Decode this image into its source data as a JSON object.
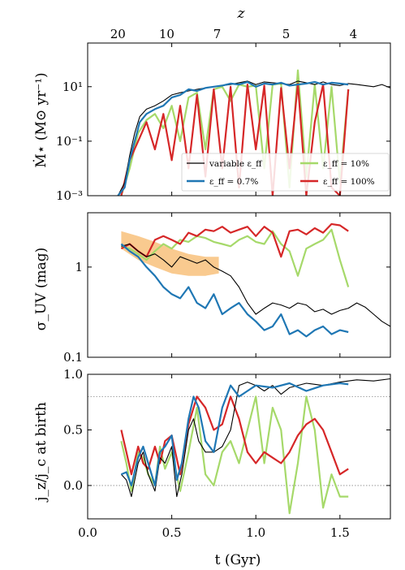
{
  "chart_data": [
    {
      "panel": "sfr",
      "type": "line",
      "xlabel": "t (Gyr)",
      "ylabel": "Ṁ⋆ (M⊙ yr⁻¹)",
      "yscale": "log",
      "xlim": [
        0,
        1.8
      ],
      "ylim": [
        0.001,
        400
      ],
      "ytick_labels": [
        "10⁻³",
        "10⁻¹",
        "10¹"
      ],
      "top_axis": {
        "label": "z",
        "ticks": [
          {
            "label": "20",
            "t": 0.18
          },
          {
            "label": "10",
            "t": 0.47
          },
          {
            "label": "7",
            "t": 0.77
          },
          {
            "label": "5",
            "t": 1.18
          },
          {
            "label": "4",
            "t": 1.58
          }
        ]
      },
      "legend": {
        "position": "lower-right",
        "columns": 2
      },
      "series": [
        {
          "name": "variable ε_ff",
          "color": "#000000",
          "x": [
            0.18,
            0.22,
            0.25,
            0.28,
            0.31,
            0.35,
            0.4,
            0.45,
            0.5,
            0.55,
            0.6,
            0.65,
            0.7,
            0.75,
            0.8,
            0.85,
            0.9,
            0.95,
            1.0,
            1.05,
            1.1,
            1.15,
            1.2,
            1.25,
            1.3,
            1.35,
            1.4,
            1.45,
            1.5,
            1.55,
            1.6,
            1.65,
            1.7,
            1.75,
            1.8
          ],
          "y": [
            0.001,
            0.003,
            0.03,
            0.2,
            0.8,
            1.5,
            2,
            3,
            5,
            6,
            7,
            8,
            9,
            10,
            11,
            12,
            14,
            16,
            12,
            15,
            14,
            13,
            12,
            16,
            14,
            12,
            15,
            12,
            11,
            13,
            12,
            11,
            10,
            12,
            9
          ]
        },
        {
          "name": "ε_ff = 0.7%",
          "color": "#1f77b4",
          "x": [
            0.18,
            0.22,
            0.25,
            0.28,
            0.31,
            0.35,
            0.4,
            0.45,
            0.5,
            0.55,
            0.6,
            0.65,
            0.7,
            0.75,
            0.8,
            0.85,
            0.9,
            0.95,
            1.0,
            1.05,
            1.1,
            1.15,
            1.2,
            1.25,
            1.3,
            1.35,
            1.4,
            1.45,
            1.5,
            1.55
          ],
          "y": [
            0.001,
            0.002,
            0.02,
            0.1,
            0.5,
            1,
            1.5,
            2,
            4,
            5,
            8,
            7,
            9,
            10,
            11,
            13,
            12,
            15,
            10,
            13,
            12,
            14,
            11,
            12,
            13,
            15,
            12,
            14,
            13,
            12
          ]
        },
        {
          "name": "ε_ff = 10%",
          "color": "#a6d96a",
          "x": [
            0.2,
            0.25,
            0.3,
            0.35,
            0.4,
            0.45,
            0.5,
            0.55,
            0.6,
            0.65,
            0.7,
            0.75,
            0.8,
            0.85,
            0.9,
            0.95,
            1.0,
            1.05,
            1.1,
            1.15,
            1.2,
            1.25,
            1.3,
            1.35,
            1.4,
            1.45,
            1.5,
            1.55
          ],
          "y": [
            0.001,
            0.01,
            0.2,
            0.6,
            1,
            0.3,
            2,
            0.1,
            4,
            6,
            0.05,
            8,
            10,
            3,
            12,
            10,
            11,
            0.01,
            12,
            13,
            0.002,
            40,
            0.005,
            12,
            0.01,
            10,
            0.003,
            8
          ]
        },
        {
          "name": "ε_ff = 100%",
          "color": "#d62728",
          "x": [
            0.2,
            0.25,
            0.3,
            0.35,
            0.4,
            0.45,
            0.5,
            0.55,
            0.6,
            0.65,
            0.7,
            0.75,
            0.8,
            0.85,
            0.9,
            0.95,
            1.0,
            1.05,
            1.1,
            1.15,
            1.2,
            1.25,
            1.3,
            1.35,
            1.4,
            1.45,
            1.5,
            1.55
          ],
          "y": [
            0.001,
            0.02,
            0.1,
            0.5,
            0.05,
            1,
            0.02,
            2,
            0.01,
            5,
            0.005,
            8,
            0.01,
            10,
            0.002,
            12,
            0.05,
            11,
            0.001,
            9,
            0.01,
            13,
            0.001,
            0.5,
            12,
            0.002,
            0.001,
            8
          ]
        }
      ]
    },
    {
      "panel": "sigma_uv",
      "type": "line",
      "ylabel": "σ_UV (mag)",
      "yscale": "log",
      "xlim": [
        0,
        1.8
      ],
      "ylim": [
        0.1,
        4
      ],
      "ytick_labels": [
        "0.1",
        "1"
      ],
      "band": {
        "color": "#f7b86a",
        "x": [
          0.2,
          0.3,
          0.4,
          0.5,
          0.6,
          0.7,
          0.78
        ],
        "low": [
          1.6,
          1.2,
          1.0,
          0.85,
          0.8,
          0.8,
          0.85
        ],
        "high": [
          2.5,
          2.2,
          1.9,
          1.6,
          1.4,
          1.3,
          1.3
        ]
      },
      "series": [
        {
          "name": "variable ε_ff",
          "color": "#000000",
          "x": [
            0.2,
            0.25,
            0.3,
            0.35,
            0.4,
            0.45,
            0.5,
            0.55,
            0.6,
            0.65,
            0.7,
            0.75,
            0.8,
            0.85,
            0.9,
            0.95,
            1.0,
            1.05,
            1.1,
            1.15,
            1.2,
            1.25,
            1.3,
            1.35,
            1.4,
            1.45,
            1.5,
            1.55,
            1.6,
            1.65,
            1.7,
            1.75,
            1.8
          ],
          "y": [
            1.7,
            1.8,
            1.5,
            1.3,
            1.4,
            1.2,
            1.0,
            1.3,
            1.2,
            1.1,
            1.2,
            1.0,
            0.9,
            0.8,
            0.6,
            0.4,
            0.3,
            0.35,
            0.4,
            0.38,
            0.35,
            0.4,
            0.38,
            0.32,
            0.34,
            0.3,
            0.33,
            0.35,
            0.4,
            0.36,
            0.3,
            0.25,
            0.22
          ]
        },
        {
          "name": "ε_ff = 0.7%",
          "color": "#1f77b4",
          "x": [
            0.2,
            0.25,
            0.3,
            0.35,
            0.4,
            0.45,
            0.5,
            0.55,
            0.6,
            0.65,
            0.7,
            0.75,
            0.8,
            0.85,
            0.9,
            0.95,
            1.0,
            1.05,
            1.1,
            1.15,
            1.2,
            1.25,
            1.3,
            1.35,
            1.4,
            1.45,
            1.5,
            1.55
          ],
          "y": [
            1.8,
            1.5,
            1.3,
            1.0,
            0.8,
            0.6,
            0.5,
            0.45,
            0.6,
            0.4,
            0.35,
            0.5,
            0.3,
            0.35,
            0.4,
            0.3,
            0.25,
            0.2,
            0.22,
            0.3,
            0.18,
            0.2,
            0.17,
            0.2,
            0.22,
            0.18,
            0.2,
            0.19
          ]
        },
        {
          "name": "ε_ff = 10%",
          "color": "#a6d96a",
          "x": [
            0.2,
            0.25,
            0.3,
            0.35,
            0.4,
            0.45,
            0.5,
            0.55,
            0.6,
            0.65,
            0.7,
            0.75,
            0.8,
            0.85,
            0.9,
            0.95,
            1.0,
            1.05,
            1.1,
            1.15,
            1.2,
            1.25,
            1.3,
            1.35,
            1.4,
            1.45,
            1.5,
            1.55
          ],
          "y": [
            1.7,
            1.6,
            1.4,
            1.2,
            1.5,
            1.8,
            1.6,
            2.0,
            1.9,
            2.2,
            2.1,
            1.9,
            1.8,
            1.7,
            2.0,
            2.2,
            1.9,
            1.8,
            2.5,
            1.8,
            1.5,
            0.8,
            1.6,
            1.8,
            2.0,
            2.6,
            1.2,
            0.6
          ]
        },
        {
          "name": "ε_ff = 100%",
          "color": "#d62728",
          "x": [
            0.2,
            0.25,
            0.3,
            0.35,
            0.4,
            0.45,
            0.5,
            0.55,
            0.6,
            0.65,
            0.7,
            0.75,
            0.8,
            0.85,
            0.9,
            0.95,
            1.0,
            1.05,
            1.1,
            1.15,
            1.2,
            1.25,
            1.3,
            1.35,
            1.4,
            1.45,
            1.5,
            1.55
          ],
          "y": [
            1.6,
            1.8,
            1.5,
            1.3,
            2.0,
            2.2,
            2.0,
            1.8,
            2.4,
            2.2,
            2.6,
            2.5,
            2.8,
            2.4,
            2.6,
            2.8,
            2.2,
            2.8,
            2.4,
            1.3,
            2.5,
            2.6,
            2.3,
            2.7,
            2.4,
            3.0,
            2.9,
            2.5
          ]
        }
      ]
    },
    {
      "panel": "jz",
      "type": "line",
      "xlabel": "t (Gyr)",
      "ylabel": "j_z/j_c at birth",
      "xlim": [
        0,
        1.8
      ],
      "ylim": [
        -0.3,
        1.0
      ],
      "xtick_labels": [
        "0.0",
        "0.5",
        "1.0",
        "1.5"
      ],
      "ytick_labels": [
        "0.0",
        "0.5",
        "1.0"
      ],
      "reference_lines": [
        0.0,
        0.8
      ],
      "series": [
        {
          "name": "variable ε_ff",
          "color": "#000000",
          "x": [
            0.2,
            0.23,
            0.26,
            0.3,
            0.33,
            0.36,
            0.4,
            0.43,
            0.46,
            0.5,
            0.53,
            0.56,
            0.6,
            0.63,
            0.66,
            0.7,
            0.75,
            0.8,
            0.85,
            0.9,
            0.95,
            1.0,
            1.05,
            1.1,
            1.15,
            1.2,
            1.3,
            1.4,
            1.5,
            1.6,
            1.7,
            1.8
          ],
          "y": [
            0.1,
            0.05,
            -0.1,
            0.2,
            0.3,
            0.1,
            -0.05,
            0.25,
            0.2,
            0.35,
            -0.1,
            0.1,
            0.5,
            0.6,
            0.4,
            0.3,
            0.3,
            0.35,
            0.5,
            0.9,
            0.93,
            0.9,
            0.85,
            0.9,
            0.82,
            0.88,
            0.92,
            0.9,
            0.93,
            0.95,
            0.94,
            0.96
          ]
        },
        {
          "name": "ε_ff = 0.7%",
          "color": "#1f77b4",
          "x": [
            0.2,
            0.23,
            0.26,
            0.3,
            0.33,
            0.36,
            0.4,
            0.43,
            0.46,
            0.5,
            0.53,
            0.56,
            0.6,
            0.63,
            0.66,
            0.7,
            0.75,
            0.8,
            0.85,
            0.9,
            0.95,
            1.0,
            1.1,
            1.2,
            1.3,
            1.4,
            1.5,
            1.55
          ],
          "y": [
            0.1,
            0.12,
            0.0,
            0.25,
            0.35,
            0.2,
            0.0,
            0.3,
            0.35,
            0.45,
            0.05,
            0.2,
            0.6,
            0.8,
            0.7,
            0.4,
            0.3,
            0.7,
            0.9,
            0.8,
            0.85,
            0.9,
            0.88,
            0.92,
            0.85,
            0.9,
            0.92,
            0.91
          ]
        },
        {
          "name": "ε_ff = 10%",
          "color": "#a6d96a",
          "x": [
            0.2,
            0.23,
            0.26,
            0.3,
            0.33,
            0.36,
            0.4,
            0.43,
            0.46,
            0.5,
            0.55,
            0.6,
            0.65,
            0.7,
            0.75,
            0.8,
            0.85,
            0.9,
            0.95,
            1.0,
            1.05,
            1.1,
            1.15,
            1.2,
            1.25,
            1.3,
            1.35,
            1.4,
            1.45,
            1.5,
            1.55
          ],
          "y": [
            0.4,
            0.2,
            -0.05,
            0.3,
            0.25,
            0.1,
            0.0,
            0.35,
            0.15,
            0.3,
            -0.05,
            0.3,
            0.7,
            0.1,
            0.0,
            0.3,
            0.4,
            0.2,
            0.5,
            0.8,
            0.2,
            0.7,
            0.5,
            -0.25,
            0.2,
            0.8,
            0.5,
            -0.2,
            0.1,
            -0.1,
            -0.1
          ]
        },
        {
          "name": "ε_ff = 100%",
          "color": "#d62728",
          "x": [
            0.2,
            0.23,
            0.26,
            0.3,
            0.33,
            0.36,
            0.4,
            0.43,
            0.46,
            0.5,
            0.55,
            0.6,
            0.65,
            0.7,
            0.75,
            0.8,
            0.85,
            0.9,
            0.95,
            1.0,
            1.05,
            1.1,
            1.15,
            1.2,
            1.25,
            1.3,
            1.35,
            1.4,
            1.45,
            1.5,
            1.55
          ],
          "y": [
            0.5,
            0.3,
            0.1,
            0.35,
            0.2,
            0.15,
            0.35,
            0.2,
            0.4,
            0.45,
            0.1,
            0.55,
            0.8,
            0.7,
            0.5,
            0.55,
            0.8,
            0.6,
            0.3,
            0.2,
            0.3,
            0.25,
            0.2,
            0.3,
            0.45,
            0.55,
            0.6,
            0.5,
            0.3,
            0.1,
            0.15
          ]
        }
      ]
    }
  ]
}
